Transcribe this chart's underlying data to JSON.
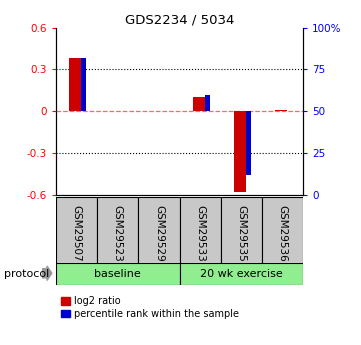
{
  "title": "GDS2234 / 5034",
  "samples": [
    "GSM29507",
    "GSM29523",
    "GSM29529",
    "GSM29533",
    "GSM29535",
    "GSM29536"
  ],
  "log2_ratio": [
    0.38,
    0.0,
    0.0,
    0.1,
    -0.58,
    0.01
  ],
  "percentile_rank": [
    82,
    50,
    50,
    60,
    12,
    50
  ],
  "ylim_left": [
    -0.6,
    0.6
  ],
  "ylim_right": [
    0,
    100
  ],
  "yticks_left": [
    -0.6,
    -0.3,
    0.0,
    0.3,
    0.6
  ],
  "yticks_right": [
    0,
    25,
    50,
    75,
    100
  ],
  "ytick_labels_right": [
    "0",
    "25",
    "50",
    "75",
    "100%"
  ],
  "bar_color_red": "#CC0000",
  "bar_color_blue": "#0000CC",
  "hline_color": "#FF6666",
  "dotted_color": "#000000",
  "group_label_0": "baseline",
  "group_label_1": "20 wk exercise",
  "group_color": "#90EE90",
  "sample_box_color": "#C8C8C8",
  "protocol_label": "protocol",
  "legend_red": "log2 ratio",
  "legend_blue": "percentile rank within the sample",
  "red_bar_width": 0.28,
  "blue_bar_width": 0.12
}
